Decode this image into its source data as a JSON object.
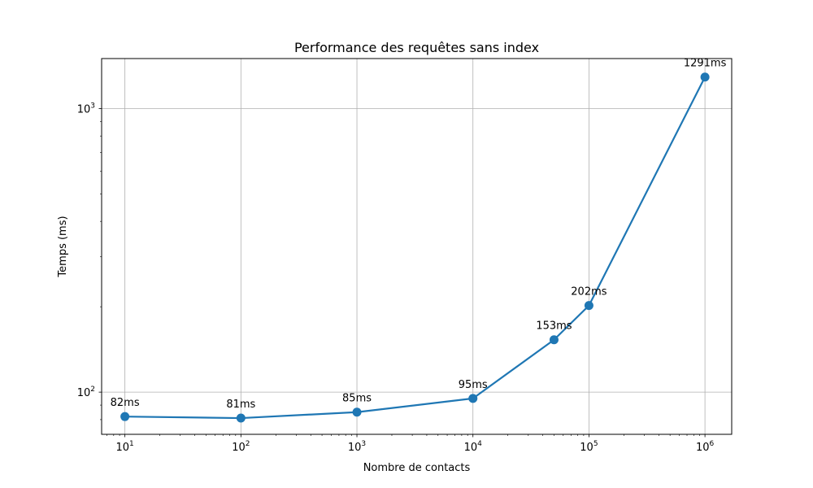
{
  "chart_data": {
    "type": "line",
    "title": "Performance des requêtes sans index",
    "xlabel": "Nombre de contacts",
    "ylabel": "Temps (ms)",
    "xscale": "log",
    "yscale": "log",
    "xlim": [
      6.3,
      1700000
    ],
    "ylim": [
      71,
      1500
    ],
    "grid": true,
    "x_ticks": [
      {
        "value": 10,
        "base": "10",
        "exp": "1"
      },
      {
        "value": 100,
        "base": "10",
        "exp": "2"
      },
      {
        "value": 1000,
        "base": "10",
        "exp": "3"
      },
      {
        "value": 10000,
        "base": "10",
        "exp": "4"
      },
      {
        "value": 100000,
        "base": "10",
        "exp": "5"
      },
      {
        "value": 1000000,
        "base": "10",
        "exp": "6"
      }
    ],
    "y_ticks": [
      {
        "value": 100,
        "base": "10",
        "exp": "2"
      },
      {
        "value": 1000,
        "base": "10",
        "exp": "3"
      }
    ],
    "color": "#1f77b4",
    "series": [
      {
        "x": [
          10,
          100,
          1000,
          10000,
          50000,
          100000,
          1000000
        ],
        "y": [
          82,
          81,
          85,
          95,
          153,
          202,
          1291
        ],
        "labels": [
          "82ms",
          "81ms",
          "85ms",
          "95ms",
          "153ms",
          "202ms",
          "1291ms"
        ]
      }
    ]
  }
}
